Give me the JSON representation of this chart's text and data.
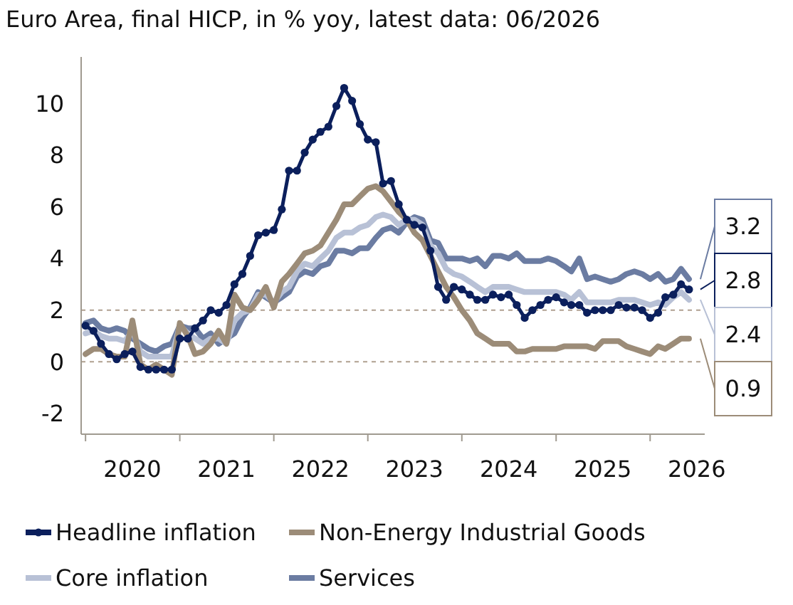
{
  "chart_data": {
    "type": "line",
    "title": "Euro Area, final HICP, in % yoy, latest data: 06/2026",
    "x": [
      "2020-01",
      "2020-02",
      "2020-03",
      "2020-04",
      "2020-05",
      "2020-06",
      "2020-07",
      "2020-08",
      "2020-09",
      "2020-10",
      "2020-11",
      "2020-12",
      "2021-01",
      "2021-02",
      "2021-03",
      "2021-04",
      "2021-05",
      "2021-06",
      "2021-07",
      "2021-08",
      "2021-09",
      "2021-10",
      "2021-11",
      "2021-12",
      "2022-01",
      "2022-02",
      "2022-03",
      "2022-04",
      "2022-05",
      "2022-06",
      "2022-07",
      "2022-08",
      "2022-09",
      "2022-10",
      "2022-11",
      "2022-12",
      "2023-01",
      "2023-02",
      "2023-03",
      "2023-04",
      "2023-05",
      "2023-06",
      "2023-07",
      "2023-08",
      "2023-09",
      "2023-10",
      "2023-11",
      "2023-12",
      "2024-01",
      "2024-02",
      "2024-03",
      "2024-04",
      "2024-05",
      "2024-06",
      "2024-07",
      "2024-08",
      "2024-09",
      "2024-10",
      "2024-11",
      "2024-12",
      "2025-01",
      "2025-02",
      "2025-03",
      "2025-04",
      "2025-05",
      "2025-06",
      "2025-07",
      "2025-08",
      "2025-09",
      "2025-10",
      "2025-11",
      "2025-12",
      "2026-01",
      "2026-02",
      "2026-03",
      "2026-04",
      "2026-05",
      "2026-06"
    ],
    "series": [
      {
        "name": "Headline inflation",
        "color": "#0b1f5c",
        "marker": "circle",
        "values": [
          1.4,
          1.2,
          0.7,
          0.3,
          0.1,
          0.3,
          0.4,
          -0.2,
          -0.3,
          -0.3,
          -0.3,
          -0.3,
          0.9,
          0.9,
          1.3,
          1.6,
          2.0,
          1.9,
          2.2,
          3.0,
          3.4,
          4.1,
          4.9,
          5.0,
          5.1,
          5.9,
          7.4,
          7.4,
          8.1,
          8.6,
          8.9,
          9.1,
          9.9,
          10.6,
          10.1,
          9.2,
          8.6,
          8.5,
          6.9,
          7.0,
          6.1,
          5.5,
          5.3,
          5.2,
          4.3,
          2.9,
          2.4,
          2.9,
          2.8,
          2.6,
          2.4,
          2.4,
          2.6,
          2.5,
          2.6,
          2.2,
          1.7,
          2.0,
          2.2,
          2.4,
          2.5,
          2.3,
          2.2,
          2.2,
          1.9,
          2.0,
          2.0,
          2.0,
          2.2,
          2.1,
          2.1,
          2.0,
          1.7,
          1.9,
          2.5,
          2.6,
          3.0,
          2.8
        ]
      },
      {
        "name": "Non-Energy Industrial Goods",
        "color": "#9c8c78",
        "values": [
          0.3,
          0.5,
          0.5,
          0.3,
          0.2,
          0.2,
          1.6,
          -0.1,
          -0.3,
          -0.1,
          -0.3,
          -0.5,
          1.5,
          1.0,
          0.3,
          0.4,
          0.7,
          1.2,
          0.7,
          2.6,
          2.1,
          2.0,
          2.4,
          2.9,
          2.1,
          3.1,
          3.4,
          3.8,
          4.2,
          4.3,
          4.5,
          5.0,
          5.5,
          6.1,
          6.1,
          6.4,
          6.7,
          6.8,
          6.6,
          6.2,
          5.8,
          5.5,
          5.0,
          4.7,
          4.1,
          3.5,
          2.9,
          2.5,
          2.0,
          1.6,
          1.1,
          0.9,
          0.7,
          0.7,
          0.7,
          0.4,
          0.4,
          0.5,
          0.5,
          0.5,
          0.5,
          0.6,
          0.6,
          0.6,
          0.6,
          0.5,
          0.8,
          0.8,
          0.8,
          0.6,
          0.5,
          0.4,
          0.3,
          0.6,
          0.5,
          0.7,
          0.9,
          0.9
        ]
      },
      {
        "name": "Core inflation",
        "color": "#b8c1d6",
        "values": [
          1.1,
          1.2,
          1.0,
          0.9,
          0.9,
          0.8,
          1.2,
          0.4,
          0.2,
          0.2,
          0.2,
          0.2,
          1.4,
          1.1,
          0.9,
          0.7,
          0.9,
          0.9,
          0.7,
          1.6,
          1.9,
          2.0,
          2.6,
          2.6,
          2.3,
          2.7,
          2.9,
          3.5,
          3.8,
          3.7,
          4.0,
          4.3,
          4.8,
          5.0,
          5.0,
          5.2,
          5.3,
          5.6,
          5.7,
          5.6,
          5.3,
          5.5,
          5.5,
          5.3,
          4.5,
          4.2,
          3.6,
          3.4,
          3.3,
          3.1,
          2.9,
          2.7,
          2.9,
          2.9,
          2.9,
          2.8,
          2.7,
          2.7,
          2.7,
          2.7,
          2.7,
          2.6,
          2.4,
          2.7,
          2.3,
          2.3,
          2.3,
          2.3,
          2.4,
          2.4,
          2.4,
          2.3,
          2.2,
          2.3,
          2.2,
          2.5,
          2.7,
          2.4
        ]
      },
      {
        "name": "Services",
        "color": "#6b7ca2",
        "values": [
          1.5,
          1.6,
          1.3,
          1.2,
          1.3,
          1.2,
          0.9,
          0.7,
          0.5,
          0.4,
          0.6,
          0.7,
          1.4,
          1.3,
          1.3,
          0.9,
          1.1,
          0.7,
          0.9,
          1.1,
          1.7,
          2.1,
          2.7,
          2.5,
          2.3,
          2.5,
          2.7,
          3.3,
          3.5,
          3.4,
          3.7,
          3.8,
          4.3,
          4.3,
          4.2,
          4.4,
          4.4,
          4.8,
          5.1,
          5.2,
          5.0,
          5.4,
          5.6,
          5.5,
          4.7,
          4.6,
          4.0,
          4.0,
          4.0,
          3.9,
          4.0,
          3.7,
          4.1,
          4.1,
          4.0,
          4.2,
          3.9,
          3.9,
          3.9,
          4.0,
          3.9,
          3.7,
          3.5,
          4.0,
          3.2,
          3.3,
          3.2,
          3.1,
          3.2,
          3.4,
          3.5,
          3.4,
          3.2,
          3.4,
          3.1,
          3.2,
          3.6,
          3.2
        ]
      }
    ],
    "annotations": [
      {
        "text": "3.2",
        "x": "2026-06",
        "y": 3.2
      },
      {
        "text": "2.8",
        "x": "2026-06",
        "y": 2.8
      },
      {
        "text": "2.4",
        "x": "2026-06",
        "y": 2.4
      },
      {
        "text": "0.9",
        "x": "2026-06",
        "y": 0.9
      }
    ],
    "ylim": [
      -2.8,
      11.8
    ],
    "yticks": [
      -2,
      0,
      2,
      4,
      6,
      8,
      10
    ],
    "xlim": [
      "2019-12-15",
      "2026-08-01"
    ],
    "xticks": [
      {
        "value": "2020-01-01",
        "label": null
      },
      {
        "value": "2020-07-01",
        "label": "2020"
      },
      {
        "value": "2021-01-01",
        "label": null
      },
      {
        "value": "2021-07-01",
        "label": "2021"
      },
      {
        "value": "2022-01-01",
        "label": null
      },
      {
        "value": "2022-07-01",
        "label": "2022"
      },
      {
        "value": "2023-01-01",
        "label": null
      },
      {
        "value": "2023-07-01",
        "label": "2023"
      },
      {
        "value": "2024-01-01",
        "label": null
      },
      {
        "value": "2024-07-01",
        "label": "2024"
      },
      {
        "value": "2025-01-01",
        "label": null
      },
      {
        "value": "2025-07-01",
        "label": "2025"
      },
      {
        "value": "2026-01-01",
        "label": null
      },
      {
        "value": "2026-07-01",
        "label": "2026"
      }
    ],
    "ref_lines": [
      {
        "axis": "y",
        "value": 0,
        "label": null,
        "color": "#b0a090",
        "line_style": "dashed"
      },
      {
        "axis": "y",
        "value": 2,
        "label": null,
        "color": "#b0a090",
        "line_style": "dashed"
      }
    ],
    "legend": "bottom",
    "grid": false
  }
}
